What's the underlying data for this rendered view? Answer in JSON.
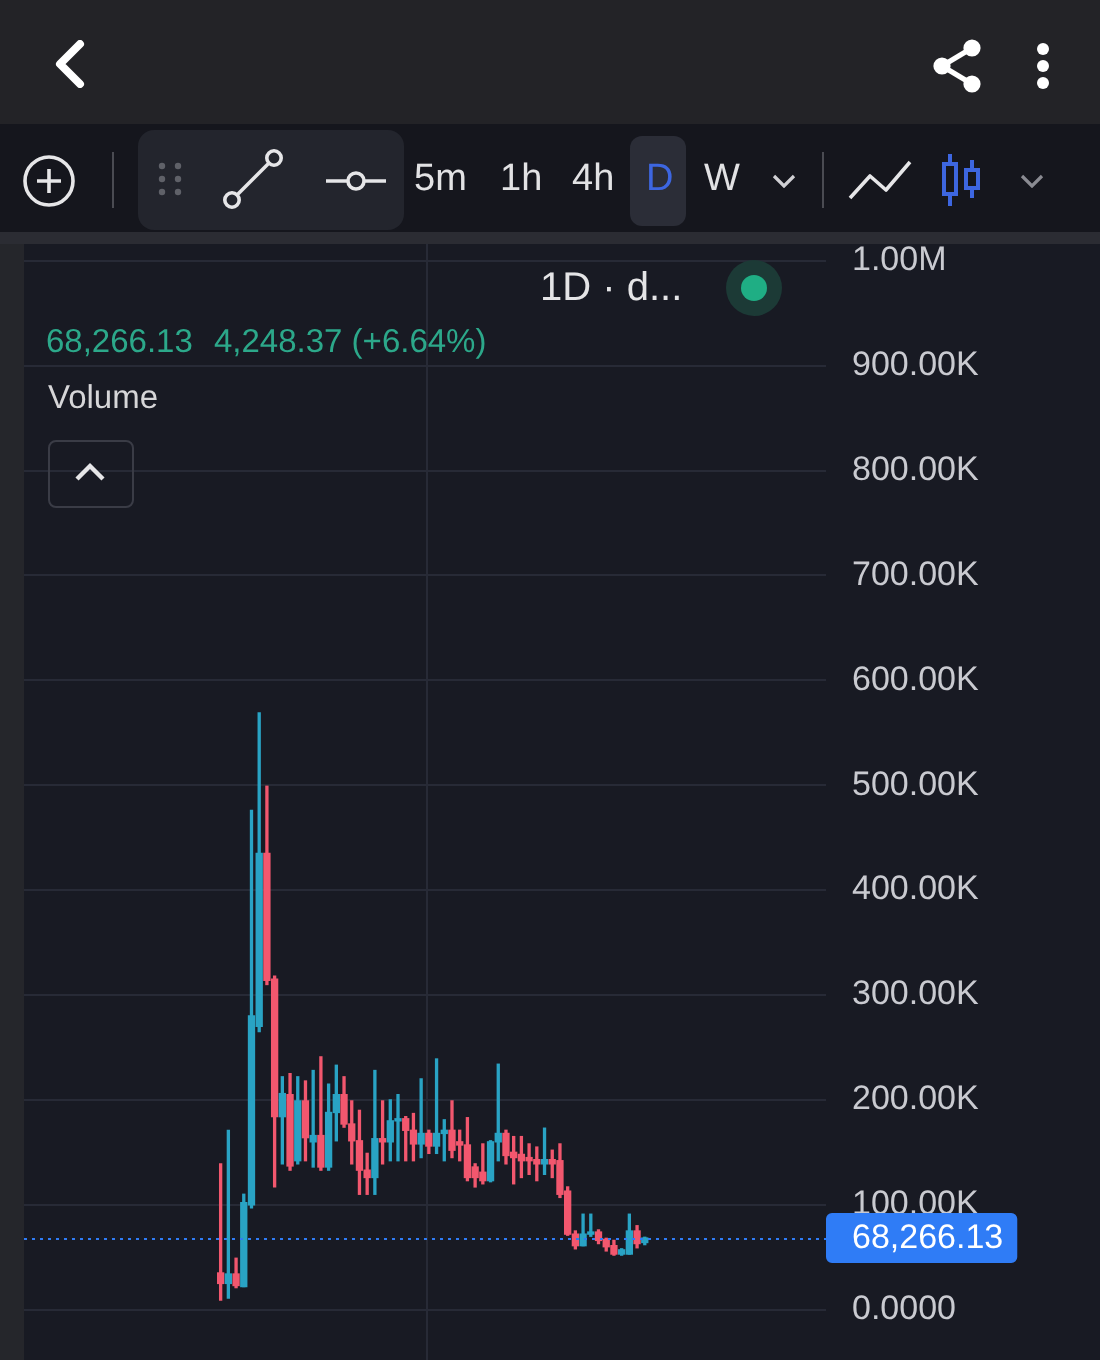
{
  "chart_data": {
    "type": "candlestick",
    "categories": [
      null,
      null,
      null,
      null,
      null,
      null,
      null,
      null,
      null,
      null,
      null,
      null,
      null,
      null,
      null,
      null,
      null,
      null,
      null,
      null,
      null,
      null,
      null,
      null,
      null,
      null,
      null,
      null,
      null,
      null,
      null,
      null,
      null,
      null,
      null,
      null,
      null,
      null,
      null,
      null,
      null,
      null,
      null,
      null,
      null,
      null,
      null,
      null,
      null,
      null,
      null,
      null,
      null,
      null,
      null,
      null,
      null,
      null,
      null,
      null,
      null,
      null,
      null,
      null,
      null,
      null,
      null,
      null,
      null,
      null,
      null,
      null,
      null,
      null,
      null,
      null,
      null,
      null,
      null,
      null,
      null,
      null,
      null,
      null,
      null,
      null,
      null,
      null,
      null,
      null,
      null,
      null,
      null,
      null,
      null,
      null,
      null,
      null,
      null,
      null,
      null,
      null,
      null,
      null
    ],
    "ohlc": [
      null,
      null,
      null,
      null,
      null,
      null,
      null,
      null,
      null,
      null,
      null,
      null,
      null,
      null,
      null,
      null,
      null,
      null,
      null,
      null,
      null,
      null,
      null,
      null,
      null,
      [
        35000,
        139000,
        9000,
        25000
      ],
      [
        25000,
        171000,
        11000,
        34000
      ],
      [
        34000,
        49000,
        21000,
        23000
      ],
      [
        22000,
        110000,
        22000,
        102000
      ],
      [
        100000,
        476000,
        97000,
        280000
      ],
      [
        270000,
        569000,
        265000,
        435000
      ],
      [
        435000,
        499000,
        310000,
        314000
      ],
      [
        315000,
        318000,
        117000,
        184000
      ],
      [
        184000,
        222000,
        139000,
        206000
      ],
      [
        205000,
        225000,
        133000,
        137000
      ],
      [
        142000,
        222000,
        139000,
        199000
      ],
      [
        199000,
        218000,
        142000,
        164000
      ],
      [
        160000,
        228000,
        136000,
        166000
      ],
      [
        166000,
        241000,
        133000,
        136000
      ],
      [
        136000,
        215000,
        133000,
        188000
      ],
      [
        188000,
        233000,
        161000,
        205000
      ],
      [
        205000,
        222000,
        174000,
        177000
      ],
      [
        177000,
        199000,
        139000,
        161000
      ],
      [
        161000,
        190000,
        110000,
        133000
      ],
      [
        133000,
        149000,
        110000,
        126000
      ],
      [
        126000,
        228000,
        110000,
        163000
      ],
      [
        163000,
        199000,
        139000,
        160000
      ],
      [
        160000,
        200000,
        142000,
        180000
      ],
      [
        180000,
        205000,
        142000,
        182000
      ],
      [
        182000,
        184000,
        142000,
        171000
      ],
      [
        171000,
        187000,
        142000,
        158000
      ],
      [
        158000,
        220000,
        145000,
        168000
      ],
      [
        168000,
        171000,
        149000,
        156000
      ],
      [
        156000,
        239000,
        149000,
        168000
      ],
      [
        168000,
        181000,
        142000,
        171000
      ],
      [
        171000,
        199000,
        145000,
        152000
      ],
      [
        160000,
        171000,
        142000,
        157000
      ],
      [
        157000,
        183000,
        123000,
        126000
      ],
      [
        136000,
        139000,
        117000,
        126000
      ],
      [
        131000,
        158000,
        120000,
        123000
      ],
      [
        123000,
        161000,
        122000,
        160000
      ],
      [
        160000,
        234000,
        142000,
        168000
      ],
      [
        168000,
        171000,
        139000,
        147000
      ],
      [
        150000,
        165000,
        120000,
        145000
      ],
      [
        148000,
        165000,
        126000,
        142000
      ],
      [
        145000,
        158000,
        129000,
        142000
      ],
      [
        143000,
        155000,
        123000,
        139000
      ],
      [
        139000,
        173000,
        129000,
        143000
      ],
      [
        143000,
        152000,
        126000,
        139000
      ],
      [
        142000,
        158000,
        107000,
        110000
      ],
      [
        113000,
        117000,
        71000,
        72000
      ],
      [
        72000,
        75000,
        58000,
        61000
      ],
      [
        61000,
        91000,
        61000,
        72000
      ],
      [
        72000,
        91000,
        70000,
        74000
      ],
      [
        74000,
        76000,
        63000,
        66000
      ],
      [
        67000,
        68000,
        56000,
        60000
      ],
      [
        61000,
        66000,
        52000,
        53000
      ],
      [
        53000,
        58000,
        52000,
        57000
      ],
      [
        53000,
        91000,
        53000,
        75000
      ],
      [
        75000,
        80000,
        59000,
        63000
      ],
      [
        64000,
        69000,
        62000,
        68266.13
      ],
      null,
      null,
      null,
      null,
      null,
      null,
      null,
      null,
      null,
      null,
      null,
      null,
      null,
      null,
      null,
      null,
      null,
      null,
      null,
      null,
      null,
      null,
      null
    ],
    "colors": [
      null,
      null,
      null,
      null,
      null,
      null,
      null,
      null,
      null,
      null,
      null,
      null,
      null,
      null,
      null,
      null,
      null,
      null,
      null,
      null,
      null,
      null,
      null,
      null,
      null,
      "#f2576e",
      "#29a3c4",
      "#f2576e",
      "#29a3c4",
      "#29a3c4",
      "#29a3c4",
      "#f2576e",
      "#f2576e",
      "#29a3c4",
      "#f2576e",
      "#29a3c4",
      "#f2576e",
      "#29a3c4",
      "#f2576e",
      "#29a3c4",
      "#29a3c4",
      "#f2576e",
      "#f2576e",
      "#f2576e",
      "#f2576e",
      "#29a3c4",
      "#f2576e",
      "#29a3c4",
      "#29a3c4",
      "#f2576e",
      "#f2576e",
      "#29a3c4",
      "#f2576e",
      "#29a3c4",
      "#29a3c4",
      "#f2576e",
      "#f2576e",
      "#f2576e",
      "#f2576e",
      "#f2576e",
      "#29a3c4",
      "#29a3c4",
      "#f2576e",
      "#f2576e",
      "#f2576e",
      "#f2576e",
      "#f2576e",
      "#29a3c4",
      "#f2576e",
      "#f2576e",
      "#f2576e",
      "#f2576e",
      "#29a3c4",
      "#29a3c4",
      "#f2576e",
      "#f2576e",
      "#f2576e",
      "#29a3c4",
      "#29a3c4",
      "#f2576e",
      "#29a3c4",
      null,
      null,
      null,
      null,
      null,
      null,
      null,
      null,
      null,
      null,
      null,
      null,
      null,
      null,
      null,
      null,
      null,
      null,
      null,
      null,
      null,
      null,
      null
    ],
    "ylim": [
      -48000,
      1016000
    ],
    "yticks": [
      {
        "value": 0,
        "label": "0.0000"
      },
      {
        "value": 100000,
        "label": "100.00K"
      },
      {
        "value": 200000,
        "label": "200.00K"
      },
      {
        "value": 300000,
        "label": "300.00K"
      },
      {
        "value": 400000,
        "label": "400.00K"
      },
      {
        "value": 500000,
        "label": "500.00K"
      },
      {
        "value": 600000,
        "label": "600.00K"
      },
      {
        "value": 700000,
        "label": "700.00K"
      },
      {
        "value": 800000,
        "label": "800.00K"
      },
      {
        "value": 900000,
        "label": "900.00K"
      },
      {
        "value": 1000000,
        "label": "1.00M"
      }
    ],
    "grid": "y",
    "tick_labels": "y",
    "ref_lines": [
      {
        "axis": "y",
        "value": 68266.13,
        "label": "68,266.13",
        "color": "#2f7cf6",
        "line_style": "dotted"
      }
    ],
    "annotations": [
      "1D · d...",
      "68,266.13",
      "4,248.37 (+6.64%)",
      "Volume",
      "5m",
      "1h",
      "4h",
      "D",
      "W"
    ]
  }
}
